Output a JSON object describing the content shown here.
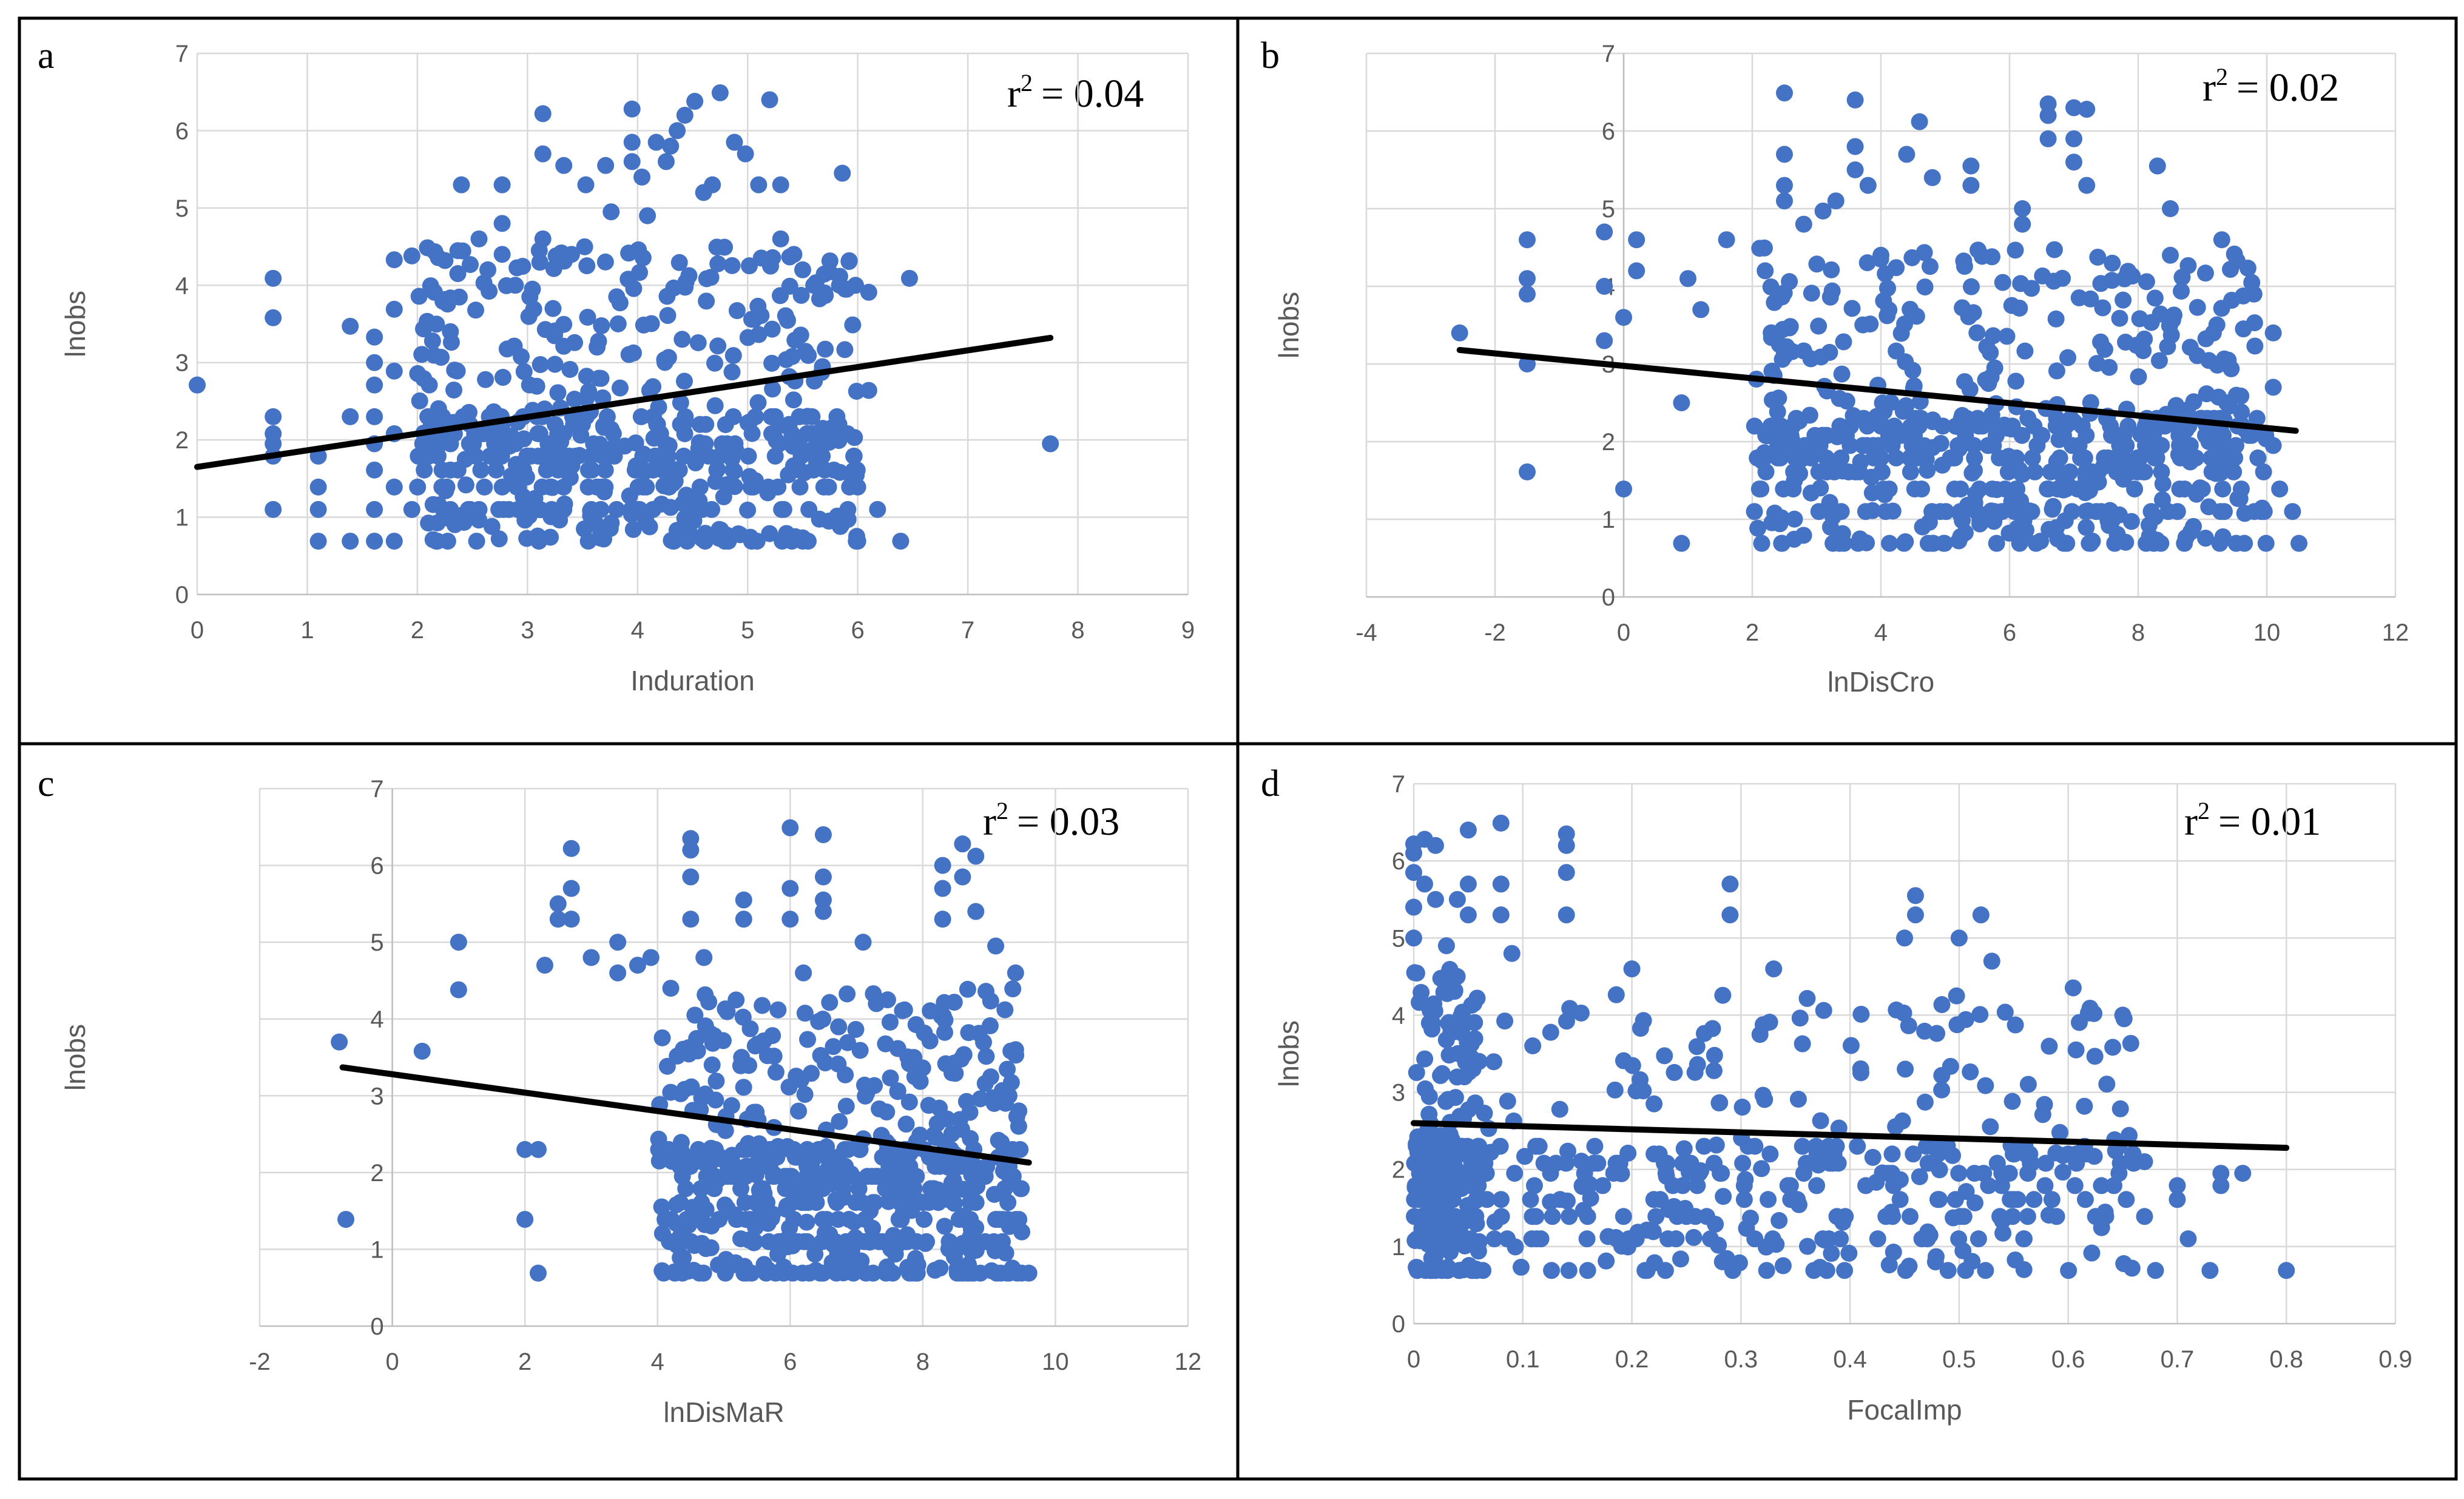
{
  "chart_data": [
    {
      "panel": "a",
      "type": "scatter",
      "xlabel": "Induration",
      "ylabel": "lnobs",
      "r2_label": "r² = 0.04",
      "r2_prefix": "r",
      "r2_value": "= 0.04",
      "xlim": [
        0,
        9
      ],
      "ylim": [
        0,
        7
      ],
      "xticks": [
        0,
        1,
        2,
        3,
        4,
        5,
        6,
        7,
        8,
        9
      ],
      "yticks": [
        0,
        1,
        2,
        3,
        4,
        5,
        6,
        7
      ],
      "trend": {
        "x": [
          0,
          7.75
        ],
        "y": [
          1.65,
          3.32
        ]
      },
      "points": [
        [
          0.0,
          2.71
        ],
        [
          0.69,
          4.09
        ],
        [
          0.69,
          3.58
        ],
        [
          0.69,
          2.3
        ],
        [
          0.69,
          2.08
        ],
        [
          0.69,
          1.95
        ],
        [
          0.69,
          1.79
        ],
        [
          0.69,
          1.1
        ],
        [
          1.1,
          1.79
        ],
        [
          1.1,
          1.39
        ],
        [
          1.1,
          1.1
        ],
        [
          1.1,
          0.69
        ],
        [
          1.39,
          3.47
        ],
        [
          1.39,
          2.3
        ],
        [
          1.39,
          0.69
        ],
        [
          1.61,
          3.33
        ],
        [
          1.61,
          3.0
        ],
        [
          1.61,
          2.71
        ],
        [
          1.61,
          2.3
        ],
        [
          1.61,
          1.95
        ],
        [
          1.61,
          1.61
        ],
        [
          1.61,
          1.1
        ],
        [
          1.61,
          0.69
        ],
        [
          1.79,
          4.33
        ],
        [
          1.79,
          3.69
        ],
        [
          1.79,
          2.89
        ],
        [
          1.79,
          2.08
        ],
        [
          1.79,
          1.39
        ],
        [
          1.79,
          0.69
        ],
        [
          1.95,
          4.38
        ],
        [
          1.95,
          1.1
        ],
        [
          2.3,
          3.4
        ],
        [
          2.3,
          1.1
        ],
        [
          2.4,
          5.3
        ],
        [
          2.48,
          1.1
        ],
        [
          2.56,
          4.6
        ],
        [
          2.56,
          1.1
        ],
        [
          2.64,
          4.2
        ],
        [
          2.77,
          5.3
        ],
        [
          2.77,
          4.8
        ],
        [
          2.77,
          4.4
        ],
        [
          2.83,
          1.1
        ],
        [
          2.89,
          4.0
        ],
        [
          2.94,
          1.1
        ],
        [
          3.0,
          1.1
        ],
        [
          3.14,
          6.22
        ],
        [
          3.14,
          5.7
        ],
        [
          3.14,
          4.6
        ],
        [
          3.22,
          1.1
        ],
        [
          3.26,
          4.38
        ],
        [
          3.33,
          5.55
        ],
        [
          3.33,
          1.1
        ],
        [
          3.4,
          4.4
        ],
        [
          3.53,
          5.3
        ],
        [
          3.58,
          1.1
        ],
        [
          3.71,
          5.55
        ],
        [
          3.76,
          4.95
        ],
        [
          3.81,
          1.1
        ],
        [
          3.95,
          6.28
        ],
        [
          3.95,
          5.85
        ],
        [
          3.95,
          5.6
        ],
        [
          4.04,
          5.4
        ],
        [
          4.09,
          4.9
        ],
        [
          4.14,
          1.1
        ],
        [
          4.17,
          5.85
        ],
        [
          4.26,
          5.6
        ],
        [
          4.3,
          5.8
        ],
        [
          4.36,
          6.0
        ],
        [
          4.43,
          6.2
        ],
        [
          4.52,
          6.38
        ],
        [
          4.6,
          5.2
        ],
        [
          4.68,
          5.3
        ],
        [
          4.75,
          6.49
        ],
        [
          4.88,
          5.85
        ],
        [
          4.98,
          5.7
        ],
        [
          5.1,
          5.3
        ],
        [
          5.2,
          6.4
        ],
        [
          5.3,
          5.3
        ],
        [
          5.3,
          4.6
        ],
        [
          5.42,
          4.4
        ],
        [
          5.5,
          4.2
        ],
        [
          5.6,
          4.0
        ],
        [
          5.7,
          3.9
        ],
        [
          5.86,
          5.45
        ],
        [
          5.9,
          3.95
        ],
        [
          5.98,
          4.0
        ],
        [
          6.1,
          3.91
        ],
        [
          6.1,
          2.64
        ],
        [
          6.18,
          1.1
        ],
        [
          6.47,
          4.09
        ],
        [
          6.39,
          0.69
        ],
        [
          6.0,
          0.69
        ],
        [
          7.75,
          1.95
        ]
      ],
      "dense_region": {
        "x": [
          2.0,
          6.0
        ],
        "y": [
          0.69,
          4.5
        ],
        "count": 560,
        "seed": 11
      }
    },
    {
      "panel": "b",
      "type": "scatter",
      "xlabel": "lnDisCro",
      "ylabel": "lnobs",
      "r2_label": "r² = 0.02",
      "r2_prefix": "r",
      "r2_value": "= 0.02",
      "xlim": [
        -4,
        12
      ],
      "ylim": [
        0,
        7
      ],
      "xticks": [
        -4,
        -2,
        0,
        2,
        4,
        6,
        8,
        10,
        12
      ],
      "yticks": [
        0,
        1,
        2,
        3,
        4,
        5,
        6,
        7
      ],
      "trend": {
        "x": [
          -2.55,
          10.45
        ],
        "y": [
          3.18,
          2.14
        ]
      },
      "points": [
        [
          -2.55,
          3.4
        ],
        [
          -1.5,
          4.6
        ],
        [
          -1.5,
          4.1
        ],
        [
          -1.5,
          3.9
        ],
        [
          -1.5,
          3.0
        ],
        [
          -1.5,
          1.61
        ],
        [
          -0.3,
          4.7
        ],
        [
          -0.3,
          4.0
        ],
        [
          -0.3,
          3.3
        ],
        [
          0.0,
          3.6
        ],
        [
          0.0,
          1.39
        ],
        [
          0.2,
          4.6
        ],
        [
          0.2,
          4.2
        ],
        [
          0.9,
          0.69
        ],
        [
          0.9,
          2.5
        ],
        [
          1.0,
          4.1
        ],
        [
          1.2,
          3.7
        ],
        [
          1.6,
          4.6
        ],
        [
          2.2,
          4.2
        ],
        [
          2.5,
          6.49
        ],
        [
          2.5,
          5.7
        ],
        [
          2.5,
          5.3
        ],
        [
          2.5,
          5.1
        ],
        [
          2.8,
          4.8
        ],
        [
          3.1,
          4.97
        ],
        [
          3.3,
          5.1
        ],
        [
          3.6,
          6.4
        ],
        [
          3.6,
          5.8
        ],
        [
          3.6,
          5.5
        ],
        [
          3.8,
          5.3
        ],
        [
          4.0,
          4.4
        ],
        [
          4.4,
          5.7
        ],
        [
          4.6,
          6.12
        ],
        [
          4.8,
          5.4
        ],
        [
          5.4,
          5.55
        ],
        [
          5.4,
          5.3
        ],
        [
          6.2,
          5.0
        ],
        [
          6.2,
          4.8
        ],
        [
          6.6,
          5.9
        ],
        [
          6.6,
          6.35
        ],
        [
          6.6,
          6.2
        ],
        [
          7.0,
          6.3
        ],
        [
          7.0,
          5.9
        ],
        [
          7.0,
          5.6
        ],
        [
          7.2,
          5.3
        ],
        [
          7.2,
          6.28
        ],
        [
          8.3,
          5.55
        ],
        [
          8.5,
          5.0
        ],
        [
          9.3,
          4.6
        ],
        [
          9.8,
          3.9
        ],
        [
          10.1,
          3.4
        ],
        [
          10.1,
          2.7
        ],
        [
          10.1,
          1.95
        ],
        [
          10.4,
          1.1
        ],
        [
          10.5,
          0.69
        ],
        [
          10.2,
          1.39
        ],
        [
          8.5,
          4.4
        ]
      ],
      "dense_region": {
        "x": [
          2.0,
          10.0
        ],
        "y": [
          0.69,
          4.5
        ],
        "count": 620,
        "seed": 23
      }
    },
    {
      "panel": "c",
      "type": "scatter",
      "xlabel": "lnDisMaR",
      "ylabel": "lnobs",
      "r2_label": "r² = 0.03",
      "r2_prefix": "r",
      "r2_value": "= 0.03",
      "xlim": [
        -2,
        12
      ],
      "ylim": [
        0,
        7
      ],
      "xticks": [
        -2,
        0,
        2,
        4,
        6,
        8,
        10,
        12
      ],
      "yticks": [
        0,
        1,
        2,
        3,
        4,
        5,
        6,
        7
      ],
      "trend": {
        "x": [
          -0.75,
          9.6
        ],
        "y": [
          3.37,
          2.13
        ]
      },
      "points": [
        [
          -0.8,
          3.7
        ],
        [
          -0.7,
          1.39
        ],
        [
          0.45,
          3.58
        ],
        [
          1.0,
          5.0
        ],
        [
          1.0,
          4.38
        ],
        [
          2.0,
          2.3
        ],
        [
          2.0,
          1.39
        ],
        [
          2.2,
          2.3
        ],
        [
          2.2,
          0.69
        ],
        [
          2.3,
          4.7
        ],
        [
          2.5,
          5.5
        ],
        [
          2.5,
          5.3
        ],
        [
          2.7,
          6.22
        ],
        [
          2.7,
          5.7
        ],
        [
          2.7,
          5.3
        ],
        [
          3.0,
          4.8
        ],
        [
          3.4,
          5.0
        ],
        [
          3.4,
          4.6
        ],
        [
          3.7,
          4.7
        ],
        [
          3.9,
          4.8
        ],
        [
          4.2,
          4.4
        ],
        [
          4.5,
          6.35
        ],
        [
          4.5,
          6.2
        ],
        [
          4.5,
          5.85
        ],
        [
          4.5,
          5.3
        ],
        [
          4.7,
          4.8
        ],
        [
          5.3,
          5.55
        ],
        [
          5.3,
          5.3
        ],
        [
          6.0,
          6.49
        ],
        [
          6.0,
          5.7
        ],
        [
          6.0,
          5.3
        ],
        [
          6.2,
          4.6
        ],
        [
          6.5,
          6.4
        ],
        [
          6.5,
          5.85
        ],
        [
          6.5,
          5.55
        ],
        [
          6.5,
          5.4
        ],
        [
          7.1,
          5.0
        ],
        [
          7.3,
          4.2
        ],
        [
          8.3,
          6.0
        ],
        [
          8.3,
          5.7
        ],
        [
          8.3,
          5.3
        ],
        [
          8.6,
          6.28
        ],
        [
          8.6,
          5.85
        ],
        [
          8.8,
          6.12
        ],
        [
          8.8,
          5.4
        ],
        [
          9.1,
          4.95
        ],
        [
          9.4,
          4.6
        ],
        [
          9.4,
          3.6
        ],
        [
          9.6,
          0.69
        ],
        [
          9.3,
          0.69
        ],
        [
          9.2,
          1.1
        ],
        [
          9.1,
          1.39
        ],
        [
          9.3,
          3.0
        ]
      ],
      "dense_region": {
        "x": [
          4.0,
          9.5
        ],
        "y": [
          0.69,
          4.4
        ],
        "count": 620,
        "seed": 37
      }
    },
    {
      "panel": "d",
      "type": "scatter",
      "xlabel": "FocalImp",
      "ylabel": "lnobs",
      "r2_label": "r² = 0.01",
      "r2_prefix": "r",
      "r2_value": "= 0.01",
      "xlim": [
        0,
        0.9
      ],
      "ylim": [
        0,
        7
      ],
      "xticks": [
        0,
        0.1,
        0.2,
        0.3,
        0.4,
        0.5,
        0.6,
        0.7,
        0.8,
        0.9
      ],
      "yticks": [
        0,
        1,
        2,
        3,
        4,
        5,
        6,
        7
      ],
      "trend": {
        "x": [
          0,
          0.8
        ],
        "y": [
          2.6,
          2.28
        ]
      },
      "points": [
        [
          0.0,
          6.22
        ],
        [
          0.0,
          6.1
        ],
        [
          0.0,
          5.85
        ],
        [
          0.0,
          5.4
        ],
        [
          0.0,
          5.0
        ],
        [
          0.01,
          6.28
        ],
        [
          0.01,
          5.7
        ],
        [
          0.02,
          5.5
        ],
        [
          0.02,
          6.2
        ],
        [
          0.03,
          4.9
        ],
        [
          0.04,
          5.5
        ],
        [
          0.05,
          6.4
        ],
        [
          0.05,
          5.7
        ],
        [
          0.05,
          5.3
        ],
        [
          0.08,
          6.49
        ],
        [
          0.08,
          5.7
        ],
        [
          0.08,
          5.3
        ],
        [
          0.09,
          4.8
        ],
        [
          0.14,
          6.35
        ],
        [
          0.14,
          6.2
        ],
        [
          0.14,
          5.85
        ],
        [
          0.14,
          5.3
        ],
        [
          0.2,
          4.6
        ],
        [
          0.29,
          5.7
        ],
        [
          0.29,
          5.3
        ],
        [
          0.33,
          4.6
        ],
        [
          0.45,
          5.0
        ],
        [
          0.46,
          5.55
        ],
        [
          0.46,
          5.3
        ],
        [
          0.5,
          5.0
        ],
        [
          0.52,
          5.3
        ],
        [
          0.53,
          4.7
        ],
        [
          0.62,
          4.09
        ],
        [
          0.65,
          4.0
        ],
        [
          0.67,
          2.1
        ],
        [
          0.67,
          1.39
        ],
        [
          0.7,
          1.79
        ],
        [
          0.7,
          1.61
        ],
        [
          0.71,
          1.1
        ],
        [
          0.73,
          0.69
        ],
        [
          0.74,
          1.79
        ],
        [
          0.74,
          1.95
        ],
        [
          0.76,
          1.95
        ],
        [
          0.8,
          0.69
        ],
        [
          0.68,
          0.69
        ],
        [
          0.6,
          2.2
        ]
      ],
      "dense_region": {
        "x": [
          0.0,
          0.06
        ],
        "y": [
          0.69,
          4.6
        ],
        "count": 260,
        "seed": 41
      },
      "dense_region_2": {
        "x": [
          0.06,
          0.66
        ],
        "y": [
          0.69,
          4.4
        ],
        "count": 380,
        "seed": 53
      }
    }
  ]
}
